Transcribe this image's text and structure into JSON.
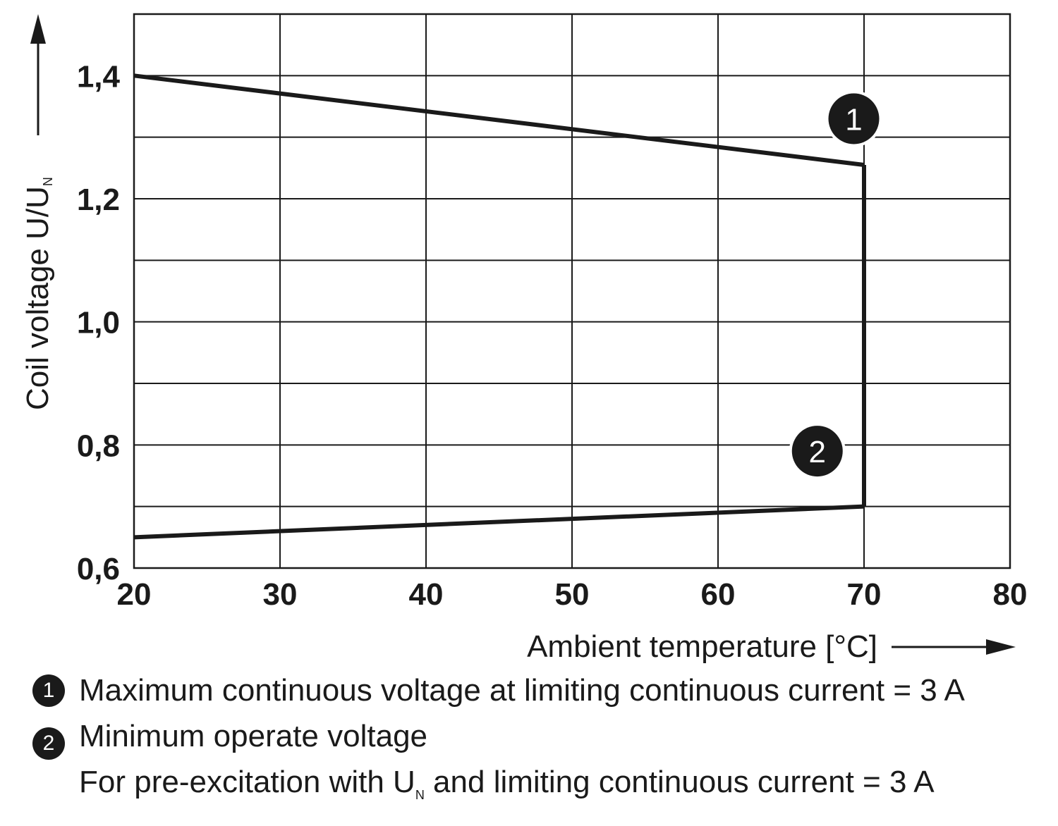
{
  "chart_data": {
    "type": "line",
    "x_axis": {
      "label": "Ambient temperature [°C]",
      "range": [
        20,
        80
      ],
      "ticks": [
        20,
        30,
        40,
        50,
        60,
        70,
        80
      ],
      "tick_labels": [
        "20",
        "30",
        "40",
        "50",
        "60",
        "70",
        "80"
      ],
      "grid": true
    },
    "y_axis": {
      "label_main": "Coil voltage U/U",
      "label_subscript": "N",
      "range": [
        0.6,
        1.5
      ],
      "ticks": [
        0.6,
        0.8,
        1.0,
        1.2,
        1.4
      ],
      "tick_labels": [
        "0,6",
        "0,8",
        "1,0",
        "1,2",
        "1,4"
      ],
      "gridlines": [
        0.6,
        0.7,
        0.8,
        0.9,
        1.0,
        1.1,
        1.2,
        1.3,
        1.4,
        1.5
      ],
      "grid": true
    },
    "series": [
      {
        "name": "1",
        "description": "Maximum continuous voltage",
        "x": [
          20,
          70
        ],
        "y": [
          1.4,
          1.255
        ]
      },
      {
        "name": "2",
        "description": "Minimum operate voltage",
        "x": [
          20,
          70
        ],
        "y": [
          0.65,
          0.7
        ]
      },
      {
        "name": "limit",
        "description": "70 °C temperature limit",
        "x": [
          70,
          70
        ],
        "y": [
          0.7,
          1.255
        ]
      }
    ],
    "annotations": [
      {
        "label": "1",
        "x": 69.3,
        "y": 1.33
      },
      {
        "label": "2",
        "x": 66.8,
        "y": 0.79
      }
    ]
  },
  "legend": {
    "item1": {
      "badge": "1",
      "text": "Maximum continuous voltage at limiting continuous current = 3 A"
    },
    "item2": {
      "badge": "2",
      "text": "Minimum operate voltage"
    },
    "note": {
      "prefix": "For pre-excitation with U",
      "subscript": "N",
      "suffix": " and limiting continuous current = 3 A"
    }
  },
  "colors": {
    "line": "#1a1a1a",
    "grid": "#1a1a1a",
    "background": "#ffffff"
  }
}
